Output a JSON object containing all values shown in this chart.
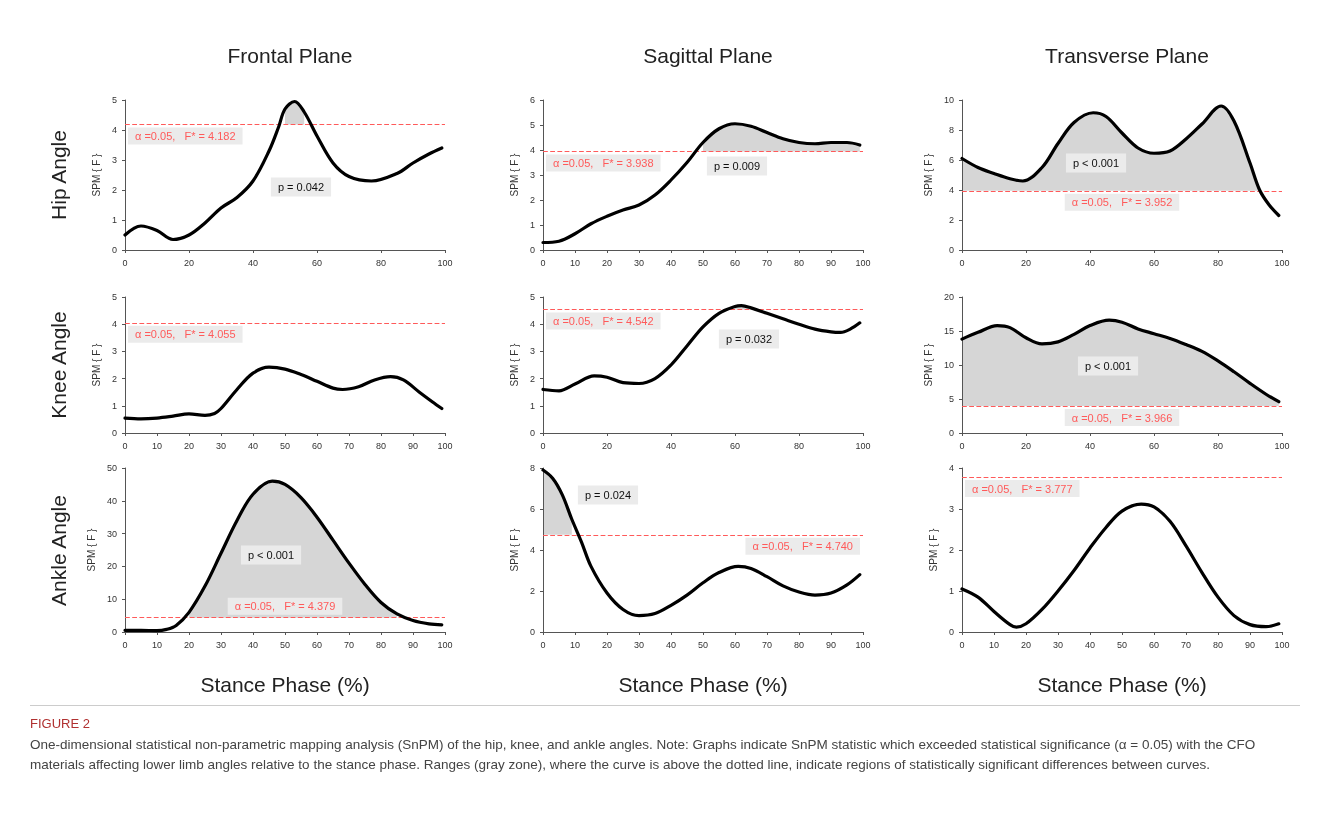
{
  "chart_data": [
    {
      "type": "line",
      "title": "Frontal Plane",
      "ylabel": "SPM { F }",
      "x": [
        0,
        5,
        10,
        15,
        20,
        25,
        30,
        35,
        40,
        45,
        48,
        50,
        53,
        56,
        60,
        65,
        70,
        77,
        85,
        90,
        95,
        99
      ],
      "series": [
        {
          "color": "#000000",
          "values": [
            0.5,
            0.8,
            0.65,
            0.35,
            0.5,
            0.9,
            1.4,
            1.75,
            2.3,
            3.3,
            4.1,
            4.7,
            4.95,
            4.6,
            3.8,
            2.9,
            2.45,
            2.3,
            2.55,
            2.9,
            3.2,
            3.4
          ],
          "lower": [
            null,
            null,
            null,
            null,
            null,
            null,
            null,
            null,
            null,
            null,
            null,
            4.182,
            4.182,
            4.182,
            null,
            null,
            null,
            null,
            null,
            null,
            null,
            null
          ],
          "upper": [
            null,
            null,
            null,
            null,
            null,
            null,
            null,
            null,
            null,
            null,
            null,
            4.7,
            4.95,
            4.6,
            null,
            null,
            null,
            null,
            null,
            null,
            null,
            null
          ]
        }
      ],
      "xlim": [
        0,
        100
      ],
      "xticks": [
        0,
        20,
        40,
        60,
        80,
        100
      ],
      "ylim": [
        0,
        5
      ],
      "yticks": [
        0,
        1,
        2,
        3,
        4,
        5
      ],
      "ref_lines": [
        {
          "axis": "y",
          "value": 4.182,
          "label": "α =0.05,   F* = 4.182",
          "color": "#ff5a5a",
          "line_style": "dashed"
        }
      ],
      "annotations": [
        "Hip Angle",
        "p = 0.042"
      ]
    },
    {
      "type": "line",
      "title": "Sagittal Plane",
      "ylabel": "SPM { F }",
      "x": [
        0,
        5,
        10,
        15,
        20,
        25,
        30,
        35,
        40,
        45,
        50,
        55,
        60,
        65,
        70,
        75,
        80,
        85,
        90,
        95,
        99
      ],
      "series": [
        {
          "color": "#000000",
          "values": [
            0.3,
            0.35,
            0.65,
            1.05,
            1.35,
            1.6,
            1.8,
            2.2,
            2.8,
            3.5,
            4.3,
            4.85,
            5.05,
            4.95,
            4.7,
            4.45,
            4.3,
            4.25,
            4.3,
            4.3,
            4.2
          ],
          "lower": [
            null,
            null,
            null,
            null,
            null,
            null,
            null,
            null,
            null,
            null,
            3.938,
            3.938,
            3.938,
            3.938,
            3.938,
            3.938,
            3.938,
            3.938,
            3.938,
            3.938,
            3.938
          ],
          "upper": [
            null,
            null,
            null,
            null,
            null,
            null,
            null,
            null,
            null,
            null,
            4.3,
            4.85,
            5.05,
            4.95,
            4.7,
            4.45,
            4.3,
            4.25,
            4.3,
            4.3,
            4.2
          ]
        }
      ],
      "xlim": [
        0,
        100
      ],
      "xticks": [
        0,
        10,
        20,
        30,
        40,
        50,
        60,
        70,
        80,
        90,
        100
      ],
      "ylim": [
        0,
        6
      ],
      "yticks": [
        0,
        1,
        2,
        3,
        4,
        5,
        6
      ],
      "ref_lines": [
        {
          "axis": "y",
          "value": 3.938,
          "label": "α =0.05,   F* = 3.938",
          "color": "#ff5a5a",
          "line_style": "dashed"
        }
      ],
      "annotations": [
        "p = 0.009"
      ]
    },
    {
      "type": "line",
      "title": "Transverse Plane",
      "ylabel": "SPM { F }",
      "x": [
        0,
        5,
        10,
        15,
        19,
        25,
        30,
        35,
        41,
        45,
        50,
        55,
        60,
        65,
        70,
        75,
        81,
        85,
        90,
        93,
        96,
        99
      ],
      "series": [
        {
          "color": "#000000",
          "values": [
            6.1,
            5.5,
            5.1,
            4.75,
            4.6,
            5.5,
            7.1,
            8.5,
            9.15,
            8.9,
            7.8,
            6.8,
            6.45,
            6.6,
            7.4,
            8.4,
            9.6,
            8.6,
            5.8,
            4.0,
            3.0,
            2.3
          ],
          "lower": [
            3.952,
            3.952,
            3.952,
            3.952,
            3.952,
            3.952,
            3.952,
            3.952,
            3.952,
            3.952,
            3.952,
            3.952,
            3.952,
            3.952,
            3.952,
            3.952,
            3.952,
            3.952,
            3.952,
            3.952,
            null,
            null
          ],
          "upper": [
            6.1,
            5.5,
            5.1,
            4.75,
            4.6,
            5.5,
            7.1,
            8.5,
            9.15,
            8.9,
            7.8,
            6.8,
            6.45,
            6.6,
            7.4,
            8.4,
            9.6,
            8.6,
            5.8,
            4.0,
            null,
            null
          ]
        }
      ],
      "xlim": [
        0,
        100
      ],
      "xticks": [
        0,
        20,
        40,
        60,
        80,
        100
      ],
      "ylim": [
        0,
        10
      ],
      "yticks": [
        0,
        2,
        4,
        6,
        8,
        10
      ],
      "ref_lines": [
        {
          "axis": "y",
          "value": 3.952,
          "label": "α =0.05,   F* = 3.952",
          "color": "#ff5a5a",
          "line_style": "dashed"
        }
      ],
      "annotations": [
        "p < 0.001"
      ]
    },
    {
      "type": "line",
      "ylabel": "SPM { F }",
      "x": [
        0,
        5,
        10,
        15,
        20,
        25,
        28,
        30,
        35,
        40,
        45,
        50,
        55,
        60,
        65,
        68,
        73,
        78,
        83,
        87,
        92,
        96,
        99
      ],
      "series": [
        {
          "color": "#000000",
          "values": [
            0.55,
            0.52,
            0.55,
            0.62,
            0.7,
            0.65,
            0.72,
            0.9,
            1.6,
            2.2,
            2.42,
            2.35,
            2.15,
            1.9,
            1.65,
            1.6,
            1.7,
            1.95,
            2.07,
            1.95,
            1.5,
            1.15,
            0.9
          ]
        }
      ],
      "xlim": [
        0,
        100
      ],
      "xticks": [
        0,
        10,
        20,
        30,
        40,
        50,
        60,
        70,
        80,
        90,
        100
      ],
      "ylim": [
        0,
        5
      ],
      "yticks": [
        0,
        1,
        2,
        3,
        4,
        5
      ],
      "ref_lines": [
        {
          "axis": "y",
          "value": 4.055,
          "label": "α =0.05,   F* = 4.055",
          "color": "#ff5a5a",
          "line_style": "dashed"
        }
      ],
      "annotations": [
        "Knee Angle"
      ]
    },
    {
      "type": "line",
      "ylabel": "SPM { F }",
      "x": [
        0,
        5,
        10,
        16,
        20,
        25,
        30,
        35,
        40,
        45,
        50,
        55,
        60,
        62,
        65,
        70,
        75,
        80,
        85,
        90,
        93,
        96,
        99
      ],
      "series": [
        {
          "color": "#000000",
          "values": [
            1.6,
            1.55,
            1.8,
            2.1,
            2.05,
            1.85,
            1.82,
            2.0,
            2.5,
            3.2,
            3.9,
            4.4,
            4.65,
            4.68,
            4.6,
            4.4,
            4.2,
            4.0,
            3.82,
            3.72,
            3.7,
            3.82,
            4.05
          ],
          "lower": [
            null,
            null,
            null,
            null,
            null,
            null,
            null,
            null,
            null,
            null,
            null,
            null,
            4.542,
            4.542,
            4.542,
            null,
            null,
            null,
            null,
            null,
            null,
            null,
            null
          ],
          "upper": [
            null,
            null,
            null,
            null,
            null,
            null,
            null,
            null,
            null,
            null,
            null,
            null,
            4.65,
            4.68,
            4.6,
            null,
            null,
            null,
            null,
            null,
            null,
            null,
            null
          ]
        }
      ],
      "xlim": [
        0,
        100
      ],
      "xticks": [
        0,
        20,
        40,
        60,
        80,
        100
      ],
      "ylim": [
        0,
        5
      ],
      "yticks": [
        0,
        1,
        2,
        3,
        4,
        5
      ],
      "ref_lines": [
        {
          "axis": "y",
          "value": 4.542,
          "label": "α =0.05,   F* = 4.542",
          "color": "#ff5a5a",
          "line_style": "dashed"
        }
      ],
      "annotations": [
        "p = 0.032"
      ]
    },
    {
      "type": "line",
      "ylabel": "SPM { F }",
      "x": [
        0,
        5,
        11,
        15,
        20,
        25,
        30,
        35,
        40,
        46,
        50,
        55,
        60,
        65,
        70,
        75,
        80,
        85,
        90,
        95,
        99
      ],
      "series": [
        {
          "color": "#000000",
          "values": [
            13.8,
            14.8,
            15.8,
            15.5,
            14.0,
            13.1,
            13.4,
            14.5,
            15.8,
            16.6,
            16.3,
            15.3,
            14.6,
            13.9,
            13.0,
            12.0,
            10.6,
            9.0,
            7.3,
            5.7,
            4.6
          ],
          "lower": [
            3.966,
            3.966,
            3.966,
            3.966,
            3.966,
            3.966,
            3.966,
            3.966,
            3.966,
            3.966,
            3.966,
            3.966,
            3.966,
            3.966,
            3.966,
            3.966,
            3.966,
            3.966,
            3.966,
            3.966,
            3.966
          ],
          "upper": [
            13.8,
            14.8,
            15.8,
            15.5,
            14.0,
            13.1,
            13.4,
            14.5,
            15.8,
            16.6,
            16.3,
            15.3,
            14.6,
            13.9,
            13.0,
            12.0,
            10.6,
            9.0,
            7.3,
            5.7,
            4.6
          ]
        }
      ],
      "xlim": [
        0,
        100
      ],
      "xticks": [
        0,
        20,
        40,
        60,
        80,
        100
      ],
      "ylim": [
        0,
        20
      ],
      "yticks": [
        0,
        5,
        10,
        15,
        20
      ],
      "ref_lines": [
        {
          "axis": "y",
          "value": 3.966,
          "label": "α =0.05,   F* = 3.966",
          "color": "#ff5a5a",
          "line_style": "dashed"
        }
      ],
      "annotations": [
        "p < 0.001"
      ]
    },
    {
      "type": "line",
      "ylabel": "SPM { F }",
      "xlabel": "Stance Phase (%)",
      "x": [
        0,
        5,
        10,
        13,
        16,
        20,
        25,
        30,
        35,
        40,
        46,
        50,
        55,
        60,
        65,
        70,
        75,
        80,
        85,
        90,
        95,
        99
      ],
      "series": [
        {
          "color": "#000000",
          "values": [
            0.5,
            0.5,
            0.4,
            0.8,
            2,
            6,
            14,
            24,
            34,
            42,
            46,
            45,
            41,
            35,
            28,
            21,
            14.5,
            9,
            5.5,
            3.5,
            2.5,
            2.2
          ],
          "lower": [
            null,
            null,
            null,
            null,
            null,
            4.379,
            4.379,
            4.379,
            4.379,
            4.379,
            4.379,
            4.379,
            4.379,
            4.379,
            4.379,
            4.379,
            4.379,
            4.379,
            4.379,
            null,
            null,
            null
          ],
          "upper": [
            null,
            null,
            null,
            null,
            null,
            6,
            14,
            24,
            34,
            42,
            46,
            45,
            41,
            35,
            28,
            21,
            14.5,
            9,
            5.5,
            null,
            null,
            null
          ]
        }
      ],
      "xlim": [
        0,
        100
      ],
      "xticks": [
        0,
        10,
        20,
        30,
        40,
        50,
        60,
        70,
        80,
        90,
        100
      ],
      "ylim": [
        0,
        50
      ],
      "yticks": [
        0,
        10,
        20,
        30,
        40,
        50
      ],
      "ref_lines": [
        {
          "axis": "y",
          "value": 4.379,
          "label": "α =0.05,   F* = 4.379",
          "color": "#ff5a5a",
          "line_style": "dashed"
        }
      ],
      "annotations": [
        "Ankle Angle",
        "p < 0.001"
      ]
    },
    {
      "type": "line",
      "ylabel": "SPM { F }",
      "xlabel": "Stance Phase (%)",
      "x": [
        0,
        3,
        6,
        9,
        12,
        15,
        20,
        25,
        30,
        35,
        40,
        45,
        50,
        55,
        61,
        65,
        70,
        75,
        80,
        85,
        90,
        95,
        99
      ],
      "series": [
        {
          "color": "#000000",
          "values": [
            7.9,
            7.5,
            6.7,
            5.5,
            4.4,
            3.2,
            1.9,
            1.1,
            0.8,
            0.9,
            1.3,
            1.8,
            2.4,
            2.9,
            3.2,
            3.1,
            2.7,
            2.25,
            1.95,
            1.8,
            1.9,
            2.3,
            2.8
          ],
          "lower": [
            4.74,
            4.74,
            4.74,
            4.74,
            null,
            null,
            null,
            null,
            null,
            null,
            null,
            null,
            null,
            null,
            null,
            null,
            null,
            null,
            null,
            null,
            null,
            null,
            null
          ],
          "upper": [
            7.9,
            7.5,
            6.7,
            5.5,
            null,
            null,
            null,
            null,
            null,
            null,
            null,
            null,
            null,
            null,
            null,
            null,
            null,
            null,
            null,
            null,
            null,
            null,
            null
          ]
        }
      ],
      "xlim": [
        0,
        100
      ],
      "xticks": [
        0,
        10,
        20,
        30,
        40,
        50,
        60,
        70,
        80,
        90,
        100
      ],
      "ylim": [
        0,
        8
      ],
      "yticks": [
        0,
        2,
        4,
        6,
        8
      ],
      "ref_lines": [
        {
          "axis": "y",
          "value": 4.74,
          "label": "α =0.05,   F* = 4.740",
          "color": "#ff5a5a",
          "line_style": "dashed"
        }
      ],
      "annotations": [
        "p = 0.024"
      ]
    },
    {
      "type": "line",
      "ylabel": "SPM { F }",
      "xlabel": "Stance Phase (%)",
      "x": [
        0,
        5,
        10,
        15,
        17,
        20,
        25,
        30,
        35,
        40,
        45,
        50,
        56,
        60,
        65,
        70,
        75,
        80,
        85,
        90,
        95,
        99
      ],
      "series": [
        {
          "color": "#000000",
          "values": [
            1.05,
            0.85,
            0.5,
            0.18,
            0.12,
            0.2,
            0.55,
            1.0,
            1.5,
            2.05,
            2.55,
            2.95,
            3.12,
            3.05,
            2.7,
            2.1,
            1.45,
            0.85,
            0.4,
            0.18,
            0.13,
            0.2
          ]
        }
      ],
      "xlim": [
        0,
        100
      ],
      "xticks": [
        0,
        10,
        20,
        30,
        40,
        50,
        60,
        70,
        80,
        90,
        100
      ],
      "ylim": [
        0,
        4
      ],
      "yticks": [
        0,
        1,
        2,
        3,
        4
      ],
      "ref_lines": [
        {
          "axis": "y",
          "value": 3.777,
          "label": "α =0.05,   F* = 3.777",
          "color": "#ff5a5a",
          "line_style": "dashed"
        }
      ]
    },
    {
      "type": "other",
      "title": "FIGURE 2",
      "annotations": [
        "One-dimensional statistical non-parametric mapping analysis (SnPM) of the hip, knee, and ankle angles. Note: Graphs indicate SnPM statistic which exceeded statistical significance (α = 0.05) with the CFO materials affecting lower limb angles relative to the stance phase. Ranges (gray zone), where the curve is above the dotted line, indicate regions of statistically significant differences between curves."
      ]
    }
  ]
}
